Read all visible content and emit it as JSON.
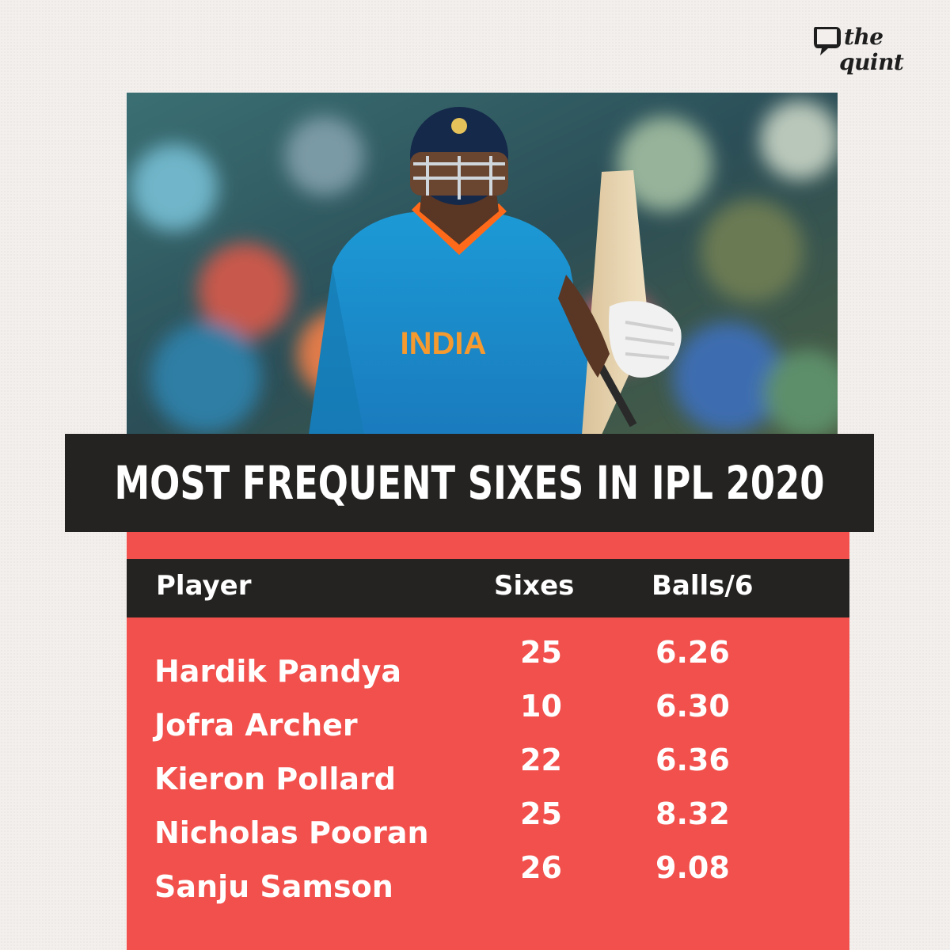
{
  "brand": {
    "logo_line1": "the",
    "logo_line2": "quint"
  },
  "photo": {
    "jersey_text": "INDIA"
  },
  "title": "MOST FREQUENT SIXES IN IPL 2020",
  "table": {
    "headers": [
      "Player",
      "Sixes",
      "Balls/6"
    ],
    "rows": [
      {
        "player": "Hardik Pandya",
        "sixes": "25",
        "balls_per_six": "6.26"
      },
      {
        "player": "Jofra Archer",
        "sixes": "10",
        "balls_per_six": "6.30"
      },
      {
        "player": "Kieron Pollard",
        "sixes": "22",
        "balls_per_six": "6.36"
      },
      {
        "player": "Nicholas Pooran",
        "sixes": "25",
        "balls_per_six": "8.32"
      },
      {
        "player": "Sanju Samson",
        "sixes": "26",
        "balls_per_six": "9.08"
      }
    ]
  },
  "colors": {
    "background": "#f3efed",
    "card_red": "#f2504c",
    "band_dark": "#242321",
    "text_white": "#ffffff"
  }
}
